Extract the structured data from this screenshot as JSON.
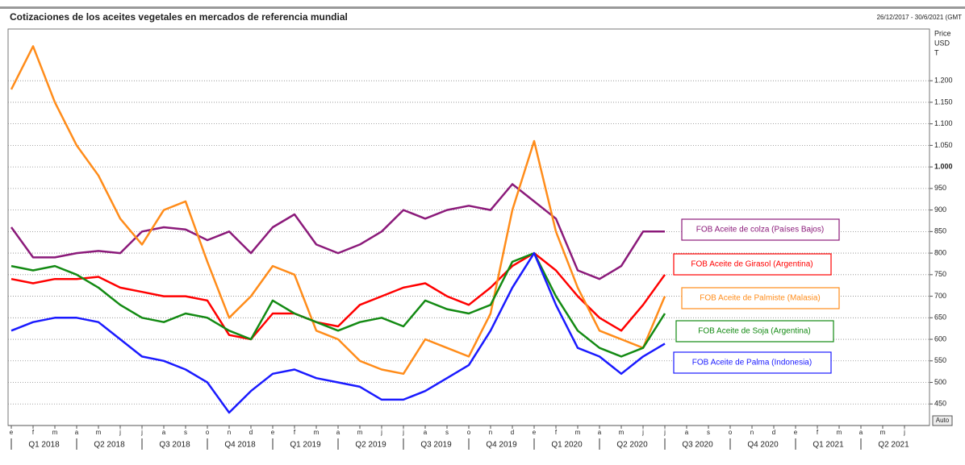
{
  "chart_data": {
    "type": "line",
    "title": "Cotizaciones de los aceites vegetales en mercados de referencia mundial",
    "date_range": "26/12/2017 - 30/6/2021 (GMT",
    "y_axis_label": [
      "Price",
      "USD",
      "T"
    ],
    "auto_button": "Auto",
    "x": [
      "2018-01",
      "2018-02",
      "2018-03",
      "2018-04",
      "2018-05",
      "2018-06",
      "2018-07",
      "2018-08",
      "2018-09",
      "2018-10",
      "2018-11",
      "2018-12",
      "2019-01",
      "2019-02",
      "2019-03",
      "2019-04",
      "2019-05",
      "2019-06",
      "2019-07",
      "2019-08",
      "2019-09",
      "2019-10",
      "2019-11",
      "2019-12",
      "2020-01",
      "2020-02",
      "2020-03",
      "2020-04",
      "2020-05",
      "2020-06",
      "2020-07"
    ],
    "xlim": [
      "2018-01",
      "2021-07"
    ],
    "month_ticks": [
      "e",
      "f",
      "m",
      "a",
      "m",
      "j",
      "j",
      "a",
      "s",
      "o",
      "n",
      "d",
      "e",
      "f",
      "m",
      "a",
      "m",
      "j",
      "j",
      "a",
      "s",
      "o",
      "n",
      "d",
      "e",
      "f",
      "m",
      "a",
      "m",
      "j",
      "j",
      "a",
      "s",
      "o",
      "n",
      "d",
      "e",
      "f",
      "m",
      "a",
      "m",
      "j"
    ],
    "quarter_ticks": [
      "Q1 2018",
      "Q2 2018",
      "Q3 2018",
      "Q4 2018",
      "Q1 2019",
      "Q2 2019",
      "Q3 2019",
      "Q4 2019",
      "Q1 2020",
      "Q2 2020",
      "Q3 2020",
      "Q4 2020",
      "Q1 2021",
      "Q2 2021"
    ],
    "ylim": [
      400,
      1320
    ],
    "yticks": [
      450,
      500,
      550,
      600,
      650,
      700,
      750,
      800,
      850,
      900,
      950,
      {
        "value": 1000,
        "label": "1.000"
      },
      {
        "value": 1050,
        "label": "1.050"
      },
      {
        "value": 1100,
        "label": "1.100"
      },
      {
        "value": 1150,
        "label": "1.150"
      },
      {
        "value": 1200,
        "label": "1.200"
      }
    ],
    "grid": true,
    "legend": "right",
    "series": [
      {
        "name": "FOB Aceite de colza (Países Bajos)",
        "color": "#8b1a7a",
        "values": [
          860,
          790,
          790,
          800,
          805,
          800,
          850,
          860,
          855,
          830,
          850,
          800,
          860,
          890,
          820,
          800,
          820,
          850,
          900,
          880,
          900,
          910,
          900,
          960,
          920,
          880,
          760,
          740,
          770,
          850,
          850
        ]
      },
      {
        "name": "FOB Aceite de Girasol (Argentina)",
        "color": "#ff0000",
        "values": [
          740,
          730,
          740,
          740,
          745,
          720,
          710,
          700,
          700,
          690,
          610,
          600,
          660,
          660,
          640,
          630,
          680,
          700,
          720,
          730,
          700,
          680,
          720,
          770,
          800,
          760,
          700,
          650,
          620,
          680,
          750
        ]
      },
      {
        "name": "FOB Aceite de Palmiste (Malasia)",
        "color": "#ff8c1a",
        "values": [
          1180,
          1280,
          1150,
          1050,
          980,
          880,
          820,
          900,
          920,
          780,
          650,
          700,
          770,
          750,
          620,
          600,
          550,
          530,
          520,
          600,
          580,
          560,
          660,
          900,
          1060,
          850,
          720,
          620,
          600,
          580,
          700
        ]
      },
      {
        "name": "FOB Aceite de Soja (Argentina)",
        "color": "#138a13",
        "values": [
          770,
          760,
          770,
          750,
          720,
          680,
          650,
          640,
          660,
          650,
          620,
          600,
          690,
          660,
          640,
          620,
          640,
          650,
          630,
          690,
          670,
          660,
          680,
          780,
          800,
          700,
          620,
          580,
          560,
          580,
          660
        ]
      },
      {
        "name": "FOB Aceite de Palma (Indonesia)",
        "color": "#1a1aff",
        "values": [
          620,
          640,
          650,
          650,
          640,
          600,
          560,
          550,
          530,
          500,
          430,
          480,
          520,
          530,
          510,
          500,
          490,
          460,
          460,
          480,
          510,
          540,
          620,
          720,
          800,
          680,
          580,
          560,
          520,
          560,
          590
        ]
      }
    ]
  }
}
